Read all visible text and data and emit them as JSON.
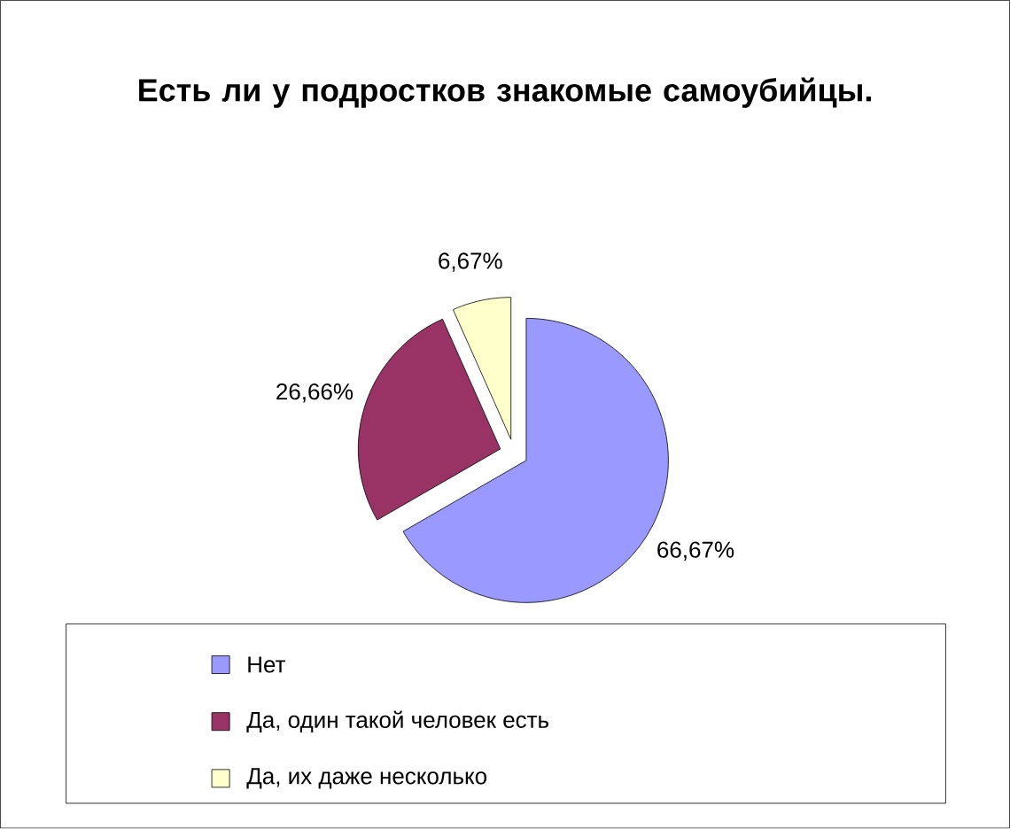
{
  "chart_data": {
    "type": "pie",
    "title": "Есть ли у подростков знакомые самоубийцы.",
    "categories": [
      "Нет",
      "Да, один такой человек есть",
      "Да, их даже несколько"
    ],
    "values": [
      66.67,
      26.66,
      6.67
    ],
    "value_labels": [
      "66,67%",
      "26,66%",
      "6,67%"
    ],
    "colors": [
      "#9999ff",
      "#993366",
      "#ffffcc"
    ],
    "legend": "bottom"
  }
}
